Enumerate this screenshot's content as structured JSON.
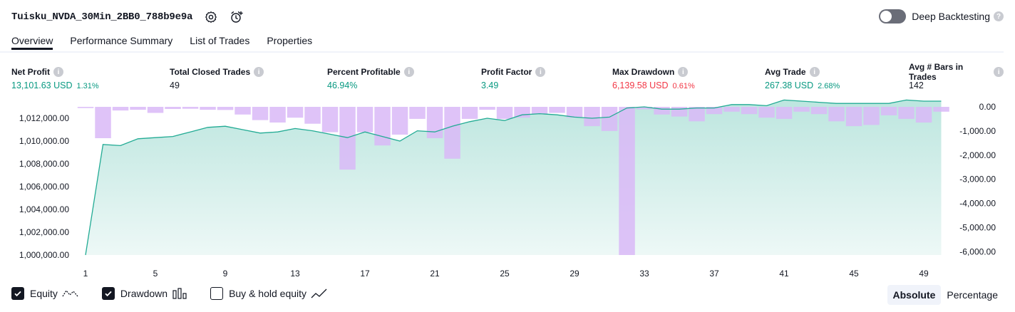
{
  "header": {
    "title": "Tuisku_NVDA_30Min_2BB0_788b9e9a",
    "icons": [
      "settings-icon",
      "alert-add-icon"
    ],
    "deep_backtesting_label": "Deep Backtesting",
    "deep_backtesting_enabled": false
  },
  "tabs": [
    {
      "label": "Overview",
      "active": true
    },
    {
      "label": "Performance Summary",
      "active": false
    },
    {
      "label": "List of Trades",
      "active": false
    },
    {
      "label": "Properties",
      "active": false
    }
  ],
  "metrics": {
    "net_profit": {
      "label": "Net Profit",
      "value": "13,101.63 USD",
      "pct": "1.31%"
    },
    "total_closed_trades": {
      "label": "Total Closed Trades",
      "value": "49"
    },
    "percent_profitable": {
      "label": "Percent Profitable",
      "value": "46.94%"
    },
    "profit_factor": {
      "label": "Profit Factor",
      "value": "3.49"
    },
    "max_drawdown": {
      "label": "Max Drawdown",
      "value": "6,139.58 USD",
      "pct": "0.61%"
    },
    "avg_trade": {
      "label": "Avg Trade",
      "value": "267.38 USD",
      "pct": "2.68%"
    },
    "avg_bars": {
      "label": "Avg # Bars in Trades",
      "value": "142"
    }
  },
  "chart_data": {
    "type": "area",
    "x": [
      1,
      2,
      3,
      4,
      5,
      6,
      7,
      8,
      9,
      10,
      11,
      12,
      13,
      14,
      15,
      16,
      17,
      18,
      19,
      20,
      21,
      22,
      23,
      24,
      25,
      26,
      27,
      28,
      29,
      30,
      31,
      32,
      33,
      34,
      35,
      36,
      37,
      38,
      39,
      40,
      41,
      42,
      43,
      44,
      45,
      46,
      47,
      48,
      49,
      50
    ],
    "x_tick_labels": [
      "1",
      "5",
      "9",
      "13",
      "17",
      "21",
      "25",
      "29",
      "33",
      "37",
      "41",
      "45",
      "49"
    ],
    "left_axis": {
      "ticks": [
        "1,000,000.00",
        "1,002,000.00",
        "1,004,000.00",
        "1,006,000.00",
        "1,008,000.00",
        "1,010,000.00",
        "1,012,000.00"
      ],
      "ylim": [
        1000000,
        1013000
      ]
    },
    "right_axis": {
      "ticks": [
        "0.00",
        "-1,000.00",
        "-2,000.00",
        "-3,000.00",
        "-4,000.00",
        "-5,000.00",
        "-6,000.00"
      ],
      "ylim": [
        -6139.58,
        0
      ]
    },
    "series": [
      {
        "name": "Equity",
        "color": "#22ab94",
        "values": [
          1000000,
          1009700,
          1009600,
          1010200,
          1010300,
          1010400,
          1010800,
          1011200,
          1011300,
          1011000,
          1010700,
          1010800,
          1011100,
          1010900,
          1010600,
          1010300,
          1010800,
          1010400,
          1010000,
          1010900,
          1010800,
          1011300,
          1011700,
          1012000,
          1011800,
          1012300,
          1012400,
          1012300,
          1012100,
          1012000,
          1012100,
          1012900,
          1013000,
          1012800,
          1012800,
          1012900,
          1012900,
          1013200,
          1013200,
          1013100,
          1013600,
          1013500,
          1013400,
          1013300,
          1013300,
          1013300,
          1013300,
          1013600,
          1013500,
          1013500
        ]
      },
      {
        "name": "Drawdown",
        "color": "#d9b8f7",
        "values": [
          -50,
          -1300,
          -150,
          -120,
          -250,
          -90,
          -80,
          -120,
          -130,
          -320,
          -550,
          -650,
          -450,
          -700,
          -1050,
          -2600,
          -1050,
          -1600,
          -1150,
          -500,
          -1300,
          -2150,
          -500,
          -120,
          -500,
          -450,
          -300,
          -250,
          -450,
          -800,
          -1000,
          -6139.58,
          -100,
          -320,
          -400,
          -600,
          -300,
          -200,
          -300,
          -450,
          -500,
          -200,
          -300,
          -600,
          -800,
          -750,
          -350,
          -500,
          -650,
          -200
        ]
      }
    ]
  },
  "legend": [
    {
      "label": "Equity",
      "checked": true,
      "icon": "equity-line-icon"
    },
    {
      "label": "Drawdown",
      "checked": true,
      "icon": "drawdown-bars-icon"
    },
    {
      "label": "Buy & hold equity",
      "checked": false,
      "icon": "buy-hold-line-icon"
    }
  ],
  "modes": {
    "absolute": "Absolute",
    "percentage": "Percentage",
    "active": "absolute"
  }
}
